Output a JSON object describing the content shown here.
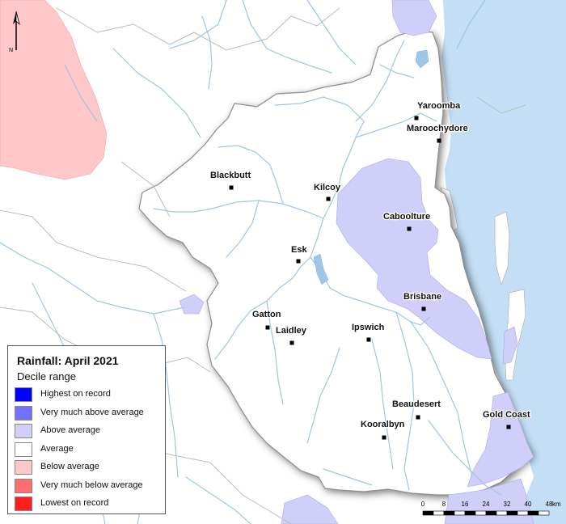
{
  "legend": {
    "title": "Rainfall: April 2021",
    "subtitle": "Decile range",
    "items": [
      {
        "label": "Highest on record",
        "color": "#0000ff"
      },
      {
        "label": "Very much above average",
        "color": "#7272ff"
      },
      {
        "label": "Above average",
        "color": "#cfcffa"
      },
      {
        "label": "Average",
        "color": "#ffffff"
      },
      {
        "label": "Below average",
        "color": "#ffc8c8"
      },
      {
        "label": "Very much below average",
        "color": "#ff6e6e"
      },
      {
        "label": "Lowest on record",
        "color": "#ff1e1e"
      }
    ]
  },
  "towns": [
    {
      "name": "Yaroomba"
    },
    {
      "name": "Maroochydore"
    },
    {
      "name": "Blackbutt"
    },
    {
      "name": "Kilcoy"
    },
    {
      "name": "Caboolture"
    },
    {
      "name": "Esk"
    },
    {
      "name": "Brisbane"
    },
    {
      "name": "Gatton"
    },
    {
      "name": "Laidley"
    },
    {
      "name": "Ipswich"
    },
    {
      "name": "Beaudesert"
    },
    {
      "name": "Gold Coast"
    },
    {
      "name": "Kooralbyn"
    }
  ],
  "north_arrow": {
    "label": "N"
  },
  "scale_bar": {
    "ticks": [
      "0",
      "8",
      "16",
      "24",
      "32",
      "40",
      "48"
    ],
    "unit": "km"
  },
  "colors": {
    "sea": "#c4dff5",
    "river": "#9ec6e6",
    "border": "#bcbcbc"
  }
}
